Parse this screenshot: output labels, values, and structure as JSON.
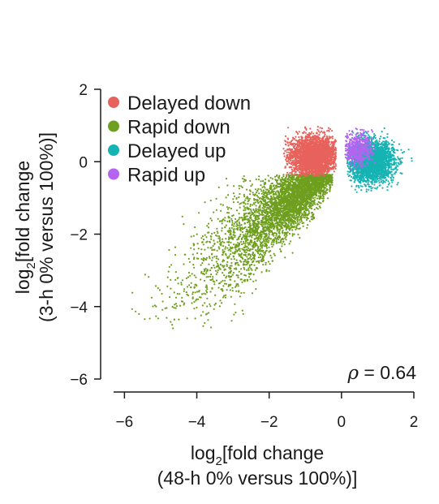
{
  "chart_data": {
    "type": "scatter",
    "xlabel": {
      "prefix": "log",
      "sub": "2",
      "suffix": "[fold change",
      "line2": "(48-h 0% versus 100%)]"
    },
    "ylabel": {
      "prefix": "log",
      "sub": "2",
      "suffix": "[fold change",
      "line2": "(3-h 0% versus 100%)]"
    },
    "xlim": [
      -6.3,
      2.0
    ],
    "ylim": [
      -6.0,
      2.0
    ],
    "x_ticks": [
      -6,
      -4,
      -2,
      0,
      2
    ],
    "y_ticks": [
      2,
      0,
      -2,
      -4,
      -6
    ],
    "x_tick_labels": [
      "−6",
      "−4",
      "−2",
      "0",
      "2"
    ],
    "y_tick_labels": [
      "2",
      "0",
      "−2",
      "−4",
      "−6"
    ],
    "legend_position": "top-left",
    "annotation": {
      "symbol": "ρ",
      "text": " = 0.64",
      "position": "bottom-right"
    },
    "series": [
      {
        "name": "Delayed down",
        "color": "#e8625c",
        "cluster": {
          "x_center": -0.75,
          "x_spread": 0.35,
          "y_center": 0.15,
          "y_spread": 0.28,
          "x_range": [
            -1.6,
            -0.15
          ],
          "y_range": [
            -0.4,
            1.0
          ],
          "approx_points": 2600
        }
      },
      {
        "name": "Rapid down",
        "color": "#6e9f1e",
        "cluster": {
          "x_center": -1.7,
          "y_intercept": 0.2,
          "slope": 0.85,
          "x_spread": 0.95,
          "y_spread": 0.45,
          "x_range": [
            -6.0,
            -0.15
          ],
          "y_range": [
            -4.6,
            -0.35
          ],
          "approx_points": 4200
        }
      },
      {
        "name": "Delayed up",
        "color": "#16b3b3",
        "cluster": {
          "x_center": 0.8,
          "x_spread": 0.32,
          "y_center": 0.0,
          "y_spread": 0.28,
          "x_range": [
            0.15,
            2.1
          ],
          "y_range": [
            -0.9,
            0.95
          ],
          "approx_points": 2600
        }
      },
      {
        "name": "Rapid up",
        "color": "#b464f0",
        "cluster": {
          "x_center": 0.45,
          "x_spread": 0.2,
          "y_center": 0.35,
          "y_spread": 0.22,
          "x_range": [
            0.1,
            1.0
          ],
          "y_range": [
            -0.6,
            1.2
          ],
          "approx_points": 500
        }
      }
    ]
  }
}
